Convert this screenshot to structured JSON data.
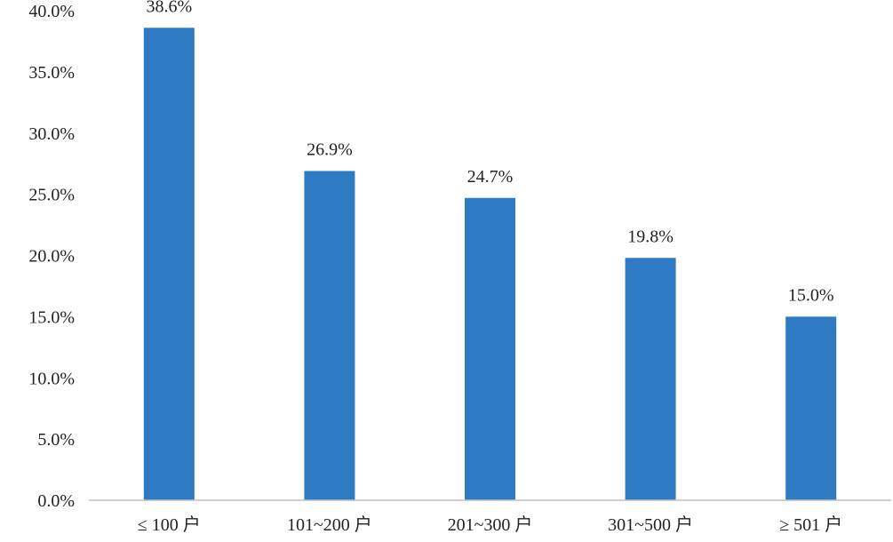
{
  "chart_data": {
    "type": "bar",
    "categories": [
      "≤ 100 户",
      "101~200 户",
      "201~300 户",
      "301~500 户",
      "≥ 501 户"
    ],
    "values": [
      38.6,
      26.9,
      24.7,
      19.8,
      15.0
    ],
    "value_labels": [
      "38.6%",
      "26.9%",
      "24.7%",
      "19.8%",
      "15.0%"
    ],
    "title": "",
    "xlabel": "",
    "ylabel": "",
    "ylim": [
      0,
      40
    ],
    "yticks": [
      0,
      5,
      10,
      15,
      20,
      25,
      30,
      35,
      40
    ],
    "ytick_labels": [
      "0.0%",
      "5.0%",
      "10.0%",
      "15.0%",
      "20.0%",
      "25.0%",
      "30.0%",
      "35.0%",
      "40.0%"
    ],
    "grid": false,
    "legend": "none",
    "bar_color": "#2e7bc4"
  }
}
